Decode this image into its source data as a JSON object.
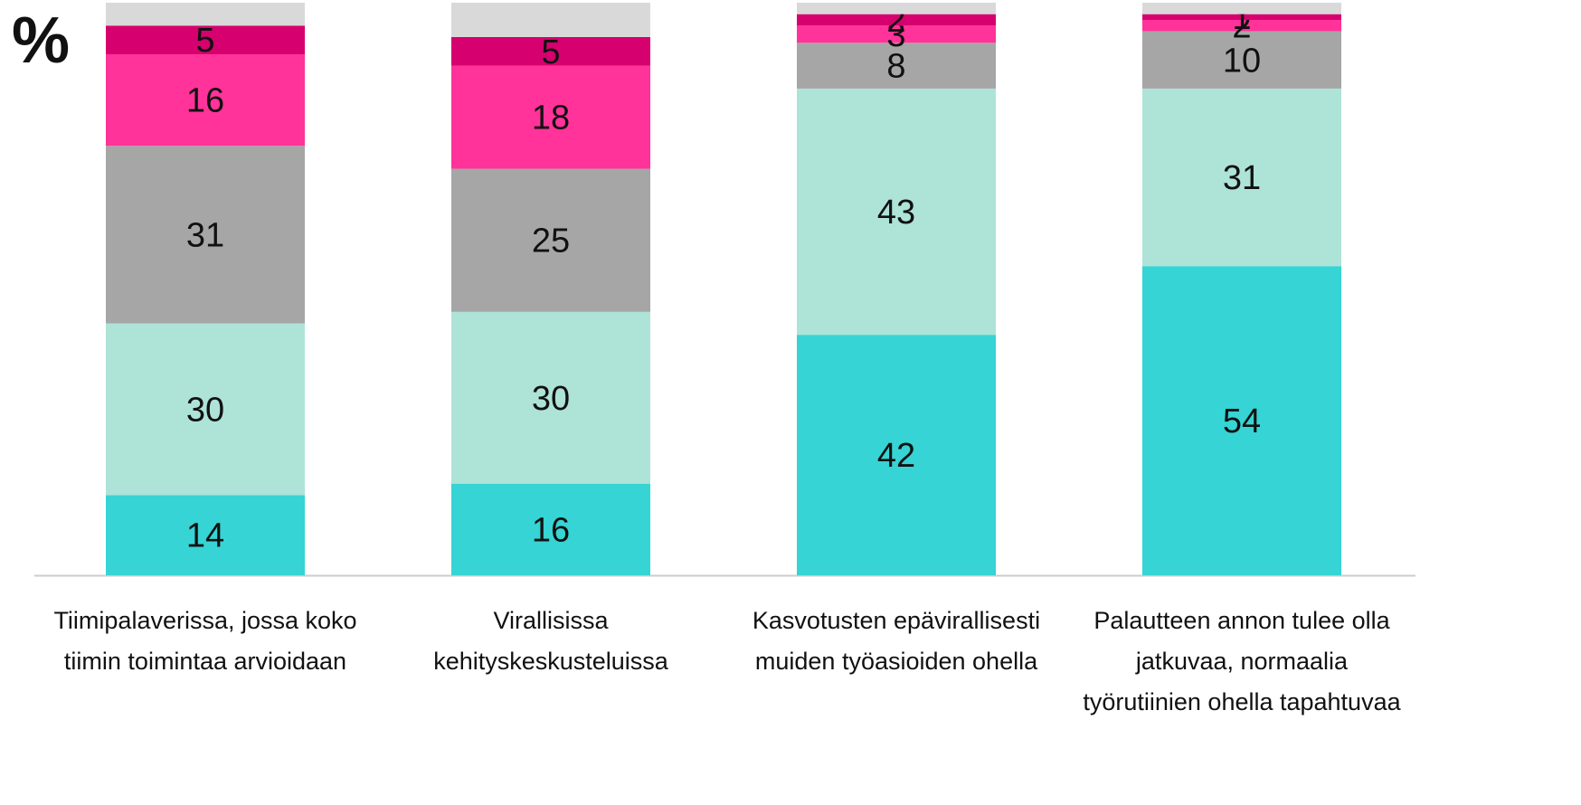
{
  "chart_data": {
    "type": "stacked_bar",
    "ylabel": "%",
    "categories": [
      [
        "Tiimipalaverissa, jossa koko",
        "tiimin toimintaa arvioidaan"
      ],
      [
        "Virallisissa",
        "kehityskeskusteluissa"
      ],
      [
        "Kasvotusten epävirallisesti",
        "muiden työasioiden ohella"
      ],
      [
        "Palautteen annon tulee olla",
        "jatkuvaa, normaalia",
        "työrutiinien ohella tapahtuvaa"
      ]
    ],
    "series": [
      {
        "color": "#36d4d4",
        "values": [
          14,
          16,
          42,
          54
        ]
      },
      {
        "color": "#aee3d8",
        "values": [
          30,
          30,
          43,
          31
        ]
      },
      {
        "color": "#a6a6a6",
        "values": [
          31,
          25,
          8,
          10
        ]
      },
      {
        "color": "#ff3399",
        "values": [
          16,
          18,
          3,
          2
        ]
      },
      {
        "color": "#d6006f",
        "values": [
          5,
          5,
          2,
          1
        ]
      },
      {
        "color": "#d9d9d9",
        "values": [
          4,
          6,
          2,
          2
        ],
        "show_labels": false
      }
    ],
    "ylim": [
      0,
      100
    ]
  }
}
